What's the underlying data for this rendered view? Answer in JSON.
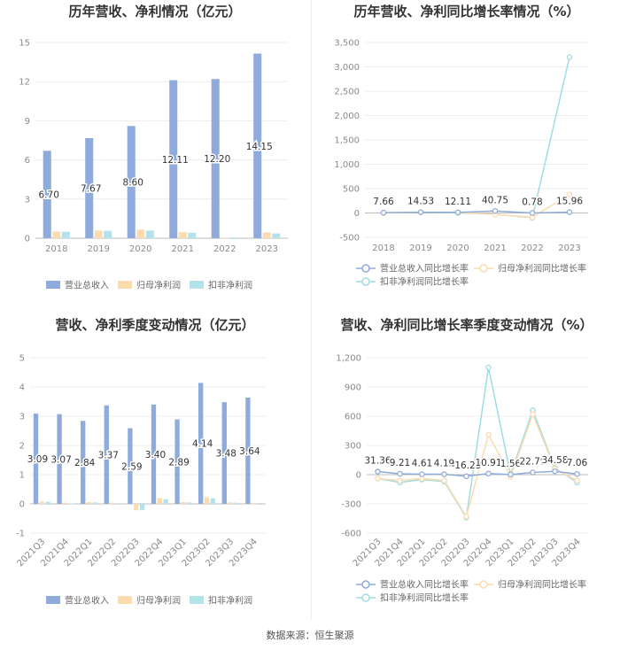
{
  "footer": {
    "source": "数据来源：恒生聚源"
  },
  "colors": {
    "revenue": "#8fabdb",
    "parent_profit": "#fcdcaf",
    "deducted_profit": "#b3e3e8",
    "line_revenue": "#8fabdb",
    "line_parent": "#fcdcaf",
    "line_deducted": "#9fdce0"
  },
  "chart_data": [
    {
      "type": "bar",
      "title": "历年营收、净利情况（亿元）",
      "categories": [
        "2018",
        "2019",
        "2020",
        "2021",
        "2022",
        "2023"
      ],
      "ylim": [
        0,
        15
      ],
      "yticks": [
        0,
        3,
        6,
        9,
        12,
        15
      ],
      "series": [
        {
          "name": "营业总收入",
          "values": [
            6.7,
            7.67,
            8.6,
            12.11,
            12.2,
            14.15
          ],
          "labels": [
            "6.70",
            "7.67",
            "8.60",
            "12.11",
            "12.20",
            "14.15"
          ]
        },
        {
          "name": "归母净利润",
          "values": [
            0.51,
            0.59,
            0.66,
            0.46,
            0.04,
            0.44
          ]
        },
        {
          "name": "扣非净利润",
          "values": [
            0.49,
            0.57,
            0.59,
            0.42,
            -0.02,
            0.37
          ]
        }
      ],
      "legend": "bottom",
      "grid": true
    },
    {
      "type": "line",
      "title": "历年营收、净利同比增长率情况（%）",
      "categories": [
        "2018",
        "2019",
        "2020",
        "2021",
        "2022",
        "2023"
      ],
      "ylim": [
        -500,
        3500
      ],
      "yticks": [
        -500,
        0,
        500,
        1000,
        1500,
        2000,
        2500,
        3000,
        3500
      ],
      "ytick_labels": [
        "-500",
        "0",
        "500",
        "1,000",
        "1,500",
        "2,000",
        "2,500",
        "3,000",
        "3,500"
      ],
      "series": [
        {
          "name": "营业总收入同比增长率",
          "values": [
            7.66,
            14.53,
            12.11,
            40.75,
            0.78,
            15.96
          ],
          "labels": [
            "7.66",
            "14.53",
            "12.11",
            "40.75",
            "0.78",
            "15.96"
          ]
        },
        {
          "name": "归母净利润同比增长率",
          "values": [
            2,
            15,
            12,
            -30,
            -90,
            380
          ]
        },
        {
          "name": "扣非净利润同比增长率",
          "values": [
            3,
            16,
            3,
            -28,
            -100,
            3200
          ]
        }
      ],
      "legend": "bottom",
      "grid": true
    },
    {
      "type": "bar",
      "title": "营收、净利季度变动情况（亿元）",
      "categories": [
        "2021Q3",
        "2021Q4",
        "2022Q1",
        "2022Q2",
        "2022Q3",
        "2022Q4",
        "2023Q1",
        "2023Q2",
        "2023Q3",
        "2023Q4"
      ],
      "ylim": [
        -1,
        5
      ],
      "yticks": [
        -1,
        0,
        1,
        2,
        3,
        4,
        5
      ],
      "series": [
        {
          "name": "营业总收入",
          "values": [
            3.09,
            3.07,
            2.84,
            3.37,
            2.59,
            3.4,
            2.89,
            4.14,
            3.48,
            3.64
          ],
          "labels": [
            "3.09",
            "3.07",
            "2.84",
            "3.37",
            "2.59",
            "3.40",
            "2.89",
            "4.14",
            "3.48",
            "3.64"
          ]
        },
        {
          "name": "归母净利润",
          "values": [
            0.08,
            0.04,
            0.06,
            0.04,
            -0.22,
            0.2,
            0.06,
            0.22,
            0.05,
            -0.02
          ]
        },
        {
          "name": "扣非净利润",
          "values": [
            0.07,
            0.01,
            0.05,
            0.02,
            -0.21,
            0.16,
            0.05,
            0.19,
            0.04,
            -0.03
          ]
        }
      ],
      "legend": "bottom",
      "grid": true
    },
    {
      "type": "line",
      "title": "营收、净利同比增长率季度变动情况（%）",
      "categories": [
        "2021Q3",
        "2021Q4",
        "2022Q1",
        "2022Q2",
        "2022Q3",
        "2022Q4",
        "2023Q1",
        "2023Q2",
        "2023Q3",
        "2023Q4"
      ],
      "ylim": [
        -600,
        1200
      ],
      "yticks": [
        -600,
        -300,
        0,
        300,
        600,
        900,
        1200
      ],
      "ytick_labels": [
        "-600",
        "-300",
        "0",
        "300",
        "600",
        "900",
        "1,200"
      ],
      "series": [
        {
          "name": "营业总收入同比增长率",
          "values": [
            31.36,
            9.21,
            4.61,
            4.19,
            -16.23,
            10.91,
            1.56,
            22.79,
            34.58,
            7.06
          ],
          "labels": [
            "31.36",
            "9.21",
            "4.61",
            "4.19",
            "-16.23",
            "10.91",
            "1.56",
            "22.79",
            "34.58",
            "7.06"
          ]
        },
        {
          "name": "归母净利润同比增长率",
          "values": [
            -40,
            -60,
            -40,
            -60,
            -430,
            410,
            -20,
            620,
            60,
            -60
          ]
        },
        {
          "name": "扣非净利润同比增长率",
          "values": [
            -40,
            -80,
            -50,
            -70,
            -440,
            1100,
            0,
            660,
            70,
            -80
          ]
        }
      ],
      "legend": "bottom",
      "grid": true
    }
  ]
}
